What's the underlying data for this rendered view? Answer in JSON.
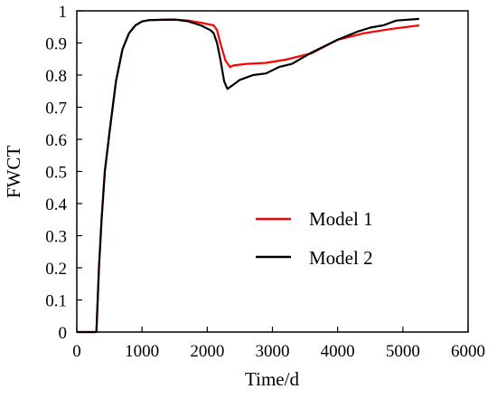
{
  "chart_data": {
    "type": "line",
    "xlabel": "Time/d",
    "ylabel": "FWCT",
    "xlim": [
      0,
      6000
    ],
    "ylim": [
      0,
      1
    ],
    "x_ticks": [
      "0",
      "1000",
      "2000",
      "3000",
      "4000",
      "5000",
      "6000"
    ],
    "y_ticks": [
      "0",
      "0.1",
      "0.2",
      "0.3",
      "0.4",
      "0.5",
      "0.6",
      "0.7",
      "0.8",
      "0.9",
      "1"
    ],
    "grid": false,
    "legend_position": "center-right",
    "series": [
      {
        "name": "Model 1",
        "color": "#ff0000",
        "x": [
          0,
          300,
          340,
          380,
          430,
          500,
          600,
          700,
          800,
          900,
          1000,
          1100,
          1300,
          1500,
          1700,
          1900,
          2100,
          2150,
          2200,
          2280,
          2350,
          2400,
          2600,
          2900,
          3200,
          3600,
          4000,
          4400,
          4800,
          5250
        ],
        "y": [
          0,
          0,
          0.2,
          0.35,
          0.5,
          0.62,
          0.78,
          0.88,
          0.93,
          0.955,
          0.967,
          0.971,
          0.972,
          0.973,
          0.97,
          0.963,
          0.955,
          0.94,
          0.9,
          0.845,
          0.825,
          0.83,
          0.835,
          0.838,
          0.848,
          0.868,
          0.91,
          0.93,
          0.943,
          0.955
        ]
      },
      {
        "name": "Model 2",
        "color": "#000000",
        "x": [
          0,
          300,
          340,
          380,
          430,
          500,
          600,
          700,
          800,
          900,
          1000,
          1100,
          1300,
          1500,
          1700,
          1900,
          2050,
          2100,
          2150,
          2200,
          2260,
          2310,
          2400,
          2500,
          2700,
          2900,
          3100,
          3300,
          3600,
          4000,
          4300,
          4500,
          4700,
          4900,
          5250
        ],
        "y": [
          0,
          0,
          0.2,
          0.35,
          0.5,
          0.62,
          0.78,
          0.88,
          0.93,
          0.955,
          0.967,
          0.971,
          0.972,
          0.973,
          0.968,
          0.955,
          0.94,
          0.93,
          0.9,
          0.85,
          0.78,
          0.757,
          0.77,
          0.785,
          0.8,
          0.805,
          0.825,
          0.835,
          0.87,
          0.91,
          0.935,
          0.948,
          0.955,
          0.97,
          0.975
        ]
      }
    ]
  }
}
